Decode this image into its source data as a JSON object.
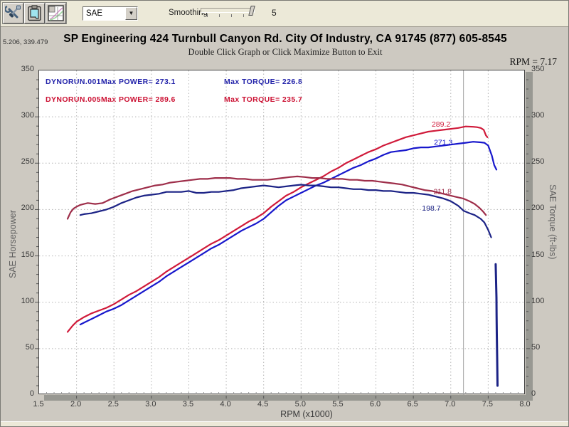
{
  "toolbar": {
    "buttons": [
      {
        "name": "tools-button",
        "icon": "wrench-screwdriver-icon"
      },
      {
        "name": "clipboard-button",
        "icon": "clipboard-icon"
      },
      {
        "name": "graph-button",
        "icon": "mini-graph-icon"
      }
    ],
    "correction_dropdown": {
      "value": "SAE"
    },
    "smoothing": {
      "label": "Smoothing",
      "value": "5"
    }
  },
  "header": {
    "cursor_coords": "5.206, 339.479",
    "title": "SP Engineering 424 Turnbull Canyon Rd. City Of Industry, CA 91745 (877) 605-8545",
    "subtitle": "Double Click Graph or Click Maximize Button to Exit",
    "rpm_readout": "RPM = 7.17"
  },
  "colors": {
    "power_red": "#d01a3a",
    "power_blue": "#1717cc",
    "torque_red": "#9e2e4a",
    "torque_blue": "#1c2386",
    "grid": "#b4b4b4",
    "cursor_line": "#a2a2a2",
    "tick": "#555555"
  },
  "chart_data": {
    "type": "line",
    "xlabel": "RPM (x1000)",
    "ylabel_left": "SAE Horsepower",
    "ylabel_right": "SAE Torque (ft-lbs)",
    "xlim": [
      1.5,
      8.0
    ],
    "ylim": [
      0,
      350
    ],
    "x_ticks": [
      1.5,
      2.0,
      2.5,
      3.0,
      3.5,
      4.0,
      4.5,
      5.0,
      5.5,
      6.0,
      6.5,
      7.0,
      7.5,
      8.0
    ],
    "y_ticks": [
      0,
      50,
      100,
      150,
      200,
      250,
      300,
      350
    ],
    "grid": true,
    "cursor_rpm": 7.17,
    "legend": [
      {
        "run": "DYNORUN.001",
        "power_label": "Max POWER= 273.1",
        "torque_label": "Max TORQUE= 226.8",
        "color": "#2323aa"
      },
      {
        "run": "DYNORUN.005",
        "power_label": "Max POWER= 289.6",
        "torque_label": "Max TORQUE= 235.7",
        "color": "#cc1133"
      }
    ],
    "annotations": [
      {
        "text": "289.2",
        "rpm": 6.87,
        "value": 292,
        "color": "#d01a3a"
      },
      {
        "text": "271.3",
        "rpm": 6.9,
        "value": 272.5,
        "color": "#1717cc"
      },
      {
        "text": "211.8",
        "rpm": 6.89,
        "value": 219.5,
        "color": "#9e2e4a"
      },
      {
        "text": "198.7",
        "rpm": 6.74,
        "value": 201.5,
        "color": "#1c2386"
      }
    ],
    "series": [
      {
        "name": "dynorun-005-power",
        "color": "#d01a3a",
        "width": 2.2,
        "points": [
          [
            1.88,
            68
          ],
          [
            1.95,
            75
          ],
          [
            2.0,
            79
          ],
          [
            2.1,
            84
          ],
          [
            2.2,
            88
          ],
          [
            2.3,
            91
          ],
          [
            2.4,
            94
          ],
          [
            2.5,
            98
          ],
          [
            2.6,
            103
          ],
          [
            2.7,
            108
          ],
          [
            2.8,
            112
          ],
          [
            2.9,
            117
          ],
          [
            3.0,
            122
          ],
          [
            3.1,
            127
          ],
          [
            3.2,
            133
          ],
          [
            3.3,
            138
          ],
          [
            3.4,
            143
          ],
          [
            3.5,
            148
          ],
          [
            3.6,
            153
          ],
          [
            3.7,
            158
          ],
          [
            3.8,
            163
          ],
          [
            3.9,
            167
          ],
          [
            4.0,
            172
          ],
          [
            4.1,
            177
          ],
          [
            4.2,
            182
          ],
          [
            4.3,
            187
          ],
          [
            4.4,
            191
          ],
          [
            4.5,
            196
          ],
          [
            4.6,
            203
          ],
          [
            4.7,
            209
          ],
          [
            4.8,
            215
          ],
          [
            4.9,
            219
          ],
          [
            5.0,
            224
          ],
          [
            5.1,
            228
          ],
          [
            5.2,
            232
          ],
          [
            5.3,
            236
          ],
          [
            5.4,
            241
          ],
          [
            5.5,
            245
          ],
          [
            5.6,
            250
          ],
          [
            5.7,
            254
          ],
          [
            5.8,
            258
          ],
          [
            5.9,
            262
          ],
          [
            6.0,
            265
          ],
          [
            6.1,
            269
          ],
          [
            6.2,
            272
          ],
          [
            6.3,
            275
          ],
          [
            6.4,
            278
          ],
          [
            6.5,
            280
          ],
          [
            6.6,
            282
          ],
          [
            6.7,
            284
          ],
          [
            6.8,
            285
          ],
          [
            6.9,
            286
          ],
          [
            7.0,
            287
          ],
          [
            7.1,
            288
          ],
          [
            7.2,
            289.6
          ],
          [
            7.3,
            289.2
          ],
          [
            7.35,
            288.8
          ],
          [
            7.4,
            288
          ],
          [
            7.44,
            286
          ],
          [
            7.47,
            280
          ],
          [
            7.49,
            278
          ]
        ]
      },
      {
        "name": "dynorun-001-power",
        "color": "#1717cc",
        "width": 2.2,
        "points": [
          [
            2.05,
            76
          ],
          [
            2.1,
            78
          ],
          [
            2.2,
            82
          ],
          [
            2.3,
            86
          ],
          [
            2.4,
            90
          ],
          [
            2.5,
            93
          ],
          [
            2.6,
            97
          ],
          [
            2.7,
            102
          ],
          [
            2.8,
            107
          ],
          [
            2.9,
            112
          ],
          [
            3.0,
            117
          ],
          [
            3.1,
            122
          ],
          [
            3.2,
            128
          ],
          [
            3.3,
            133
          ],
          [
            3.4,
            138
          ],
          [
            3.5,
            143
          ],
          [
            3.6,
            148
          ],
          [
            3.7,
            153
          ],
          [
            3.8,
            158
          ],
          [
            3.9,
            162
          ],
          [
            4.0,
            167
          ],
          [
            4.1,
            172
          ],
          [
            4.2,
            177
          ],
          [
            4.3,
            181
          ],
          [
            4.4,
            185
          ],
          [
            4.5,
            190
          ],
          [
            4.6,
            197
          ],
          [
            4.7,
            204
          ],
          [
            4.8,
            210
          ],
          [
            4.9,
            214
          ],
          [
            5.0,
            218
          ],
          [
            5.1,
            222
          ],
          [
            5.2,
            226
          ],
          [
            5.3,
            229
          ],
          [
            5.4,
            233
          ],
          [
            5.5,
            237
          ],
          [
            5.6,
            241
          ],
          [
            5.7,
            245
          ],
          [
            5.8,
            248
          ],
          [
            5.9,
            252
          ],
          [
            6.0,
            255
          ],
          [
            6.1,
            259
          ],
          [
            6.2,
            262
          ],
          [
            6.3,
            263
          ],
          [
            6.4,
            264
          ],
          [
            6.5,
            266
          ],
          [
            6.6,
            267
          ],
          [
            6.7,
            267
          ],
          [
            6.8,
            268
          ],
          [
            6.9,
            269
          ],
          [
            7.0,
            270
          ],
          [
            7.1,
            271
          ],
          [
            7.2,
            272
          ],
          [
            7.3,
            273.1
          ],
          [
            7.4,
            272.5
          ],
          [
            7.45,
            272
          ],
          [
            7.5,
            269
          ],
          [
            7.55,
            258
          ],
          [
            7.58,
            248
          ],
          [
            7.61,
            243
          ]
        ]
      },
      {
        "name": "dynorun-005-torque",
        "color": "#9e2e4a",
        "width": 2.2,
        "points": [
          [
            1.88,
            190
          ],
          [
            1.92,
            197
          ],
          [
            1.96,
            201
          ],
          [
            2.0,
            203
          ],
          [
            2.05,
            205
          ],
          [
            2.1,
            206
          ],
          [
            2.15,
            207
          ],
          [
            2.25,
            206
          ],
          [
            2.35,
            207
          ],
          [
            2.45,
            211
          ],
          [
            2.55,
            214
          ],
          [
            2.65,
            217
          ],
          [
            2.75,
            220
          ],
          [
            2.85,
            222
          ],
          [
            2.95,
            224
          ],
          [
            3.05,
            226
          ],
          [
            3.15,
            227
          ],
          [
            3.25,
            229
          ],
          [
            3.35,
            230
          ],
          [
            3.45,
            231
          ],
          [
            3.55,
            232
          ],
          [
            3.65,
            233
          ],
          [
            3.75,
            233
          ],
          [
            3.85,
            234
          ],
          [
            3.95,
            234
          ],
          [
            4.05,
            234
          ],
          [
            4.15,
            233
          ],
          [
            4.25,
            233
          ],
          [
            4.35,
            232
          ],
          [
            4.45,
            232
          ],
          [
            4.55,
            232
          ],
          [
            4.65,
            233
          ],
          [
            4.75,
            234
          ],
          [
            4.85,
            235
          ],
          [
            4.95,
            235.7
          ],
          [
            5.05,
            235
          ],
          [
            5.15,
            234
          ],
          [
            5.25,
            234
          ],
          [
            5.35,
            233
          ],
          [
            5.45,
            233
          ],
          [
            5.55,
            233
          ],
          [
            5.65,
            232
          ],
          [
            5.75,
            232
          ],
          [
            5.85,
            231
          ],
          [
            5.95,
            231
          ],
          [
            6.05,
            230
          ],
          [
            6.15,
            229
          ],
          [
            6.25,
            228
          ],
          [
            6.35,
            227
          ],
          [
            6.45,
            225
          ],
          [
            6.55,
            223
          ],
          [
            6.65,
            221
          ],
          [
            6.75,
            220
          ],
          [
            6.85,
            218
          ],
          [
            6.95,
            216
          ],
          [
            7.05,
            214
          ],
          [
            7.17,
            211.8
          ],
          [
            7.25,
            209
          ],
          [
            7.32,
            206
          ],
          [
            7.38,
            202
          ],
          [
            7.43,
            198
          ],
          [
            7.47,
            194
          ]
        ]
      },
      {
        "name": "dynorun-001-torque",
        "color": "#1c2386",
        "width": 2.2,
        "points": [
          [
            2.05,
            194
          ],
          [
            2.1,
            195
          ],
          [
            2.2,
            196
          ],
          [
            2.3,
            198
          ],
          [
            2.4,
            200
          ],
          [
            2.5,
            203
          ],
          [
            2.6,
            207
          ],
          [
            2.7,
            210
          ],
          [
            2.8,
            213
          ],
          [
            2.9,
            215
          ],
          [
            3.0,
            216
          ],
          [
            3.1,
            217
          ],
          [
            3.2,
            219
          ],
          [
            3.3,
            219
          ],
          [
            3.4,
            219
          ],
          [
            3.5,
            220
          ],
          [
            3.6,
            218
          ],
          [
            3.7,
            218
          ],
          [
            3.8,
            219
          ],
          [
            3.9,
            219
          ],
          [
            4.0,
            220
          ],
          [
            4.1,
            221
          ],
          [
            4.2,
            223
          ],
          [
            4.3,
            224
          ],
          [
            4.4,
            225
          ],
          [
            4.5,
            226
          ],
          [
            4.6,
            225
          ],
          [
            4.7,
            224
          ],
          [
            4.8,
            225
          ],
          [
            4.9,
            226
          ],
          [
            5.0,
            226.8
          ],
          [
            5.1,
            226
          ],
          [
            5.2,
            226
          ],
          [
            5.3,
            225
          ],
          [
            5.4,
            224
          ],
          [
            5.5,
            224
          ],
          [
            5.6,
            223
          ],
          [
            5.7,
            222
          ],
          [
            5.8,
            222
          ],
          [
            5.9,
            221
          ],
          [
            6.0,
            221
          ],
          [
            6.1,
            220
          ],
          [
            6.2,
            220
          ],
          [
            6.3,
            219
          ],
          [
            6.4,
            218
          ],
          [
            6.5,
            218
          ],
          [
            6.6,
            217
          ],
          [
            6.7,
            216
          ],
          [
            6.8,
            214
          ],
          [
            6.9,
            212
          ],
          [
            7.0,
            209
          ],
          [
            7.1,
            204
          ],
          [
            7.17,
            198.7
          ],
          [
            7.25,
            196
          ],
          [
            7.32,
            194
          ],
          [
            7.4,
            190
          ],
          [
            7.45,
            186
          ],
          [
            7.5,
            178
          ],
          [
            7.54,
            170
          ]
        ]
      },
      {
        "name": "dynorun-001-dropout",
        "color": "#1c2386",
        "width": 3,
        "points": [
          [
            7.6,
            141
          ],
          [
            7.605,
            125
          ],
          [
            7.61,
            105
          ],
          [
            7.612,
            85
          ],
          [
            7.615,
            65
          ],
          [
            7.62,
            40
          ],
          [
            7.625,
            10
          ]
        ]
      }
    ]
  }
}
